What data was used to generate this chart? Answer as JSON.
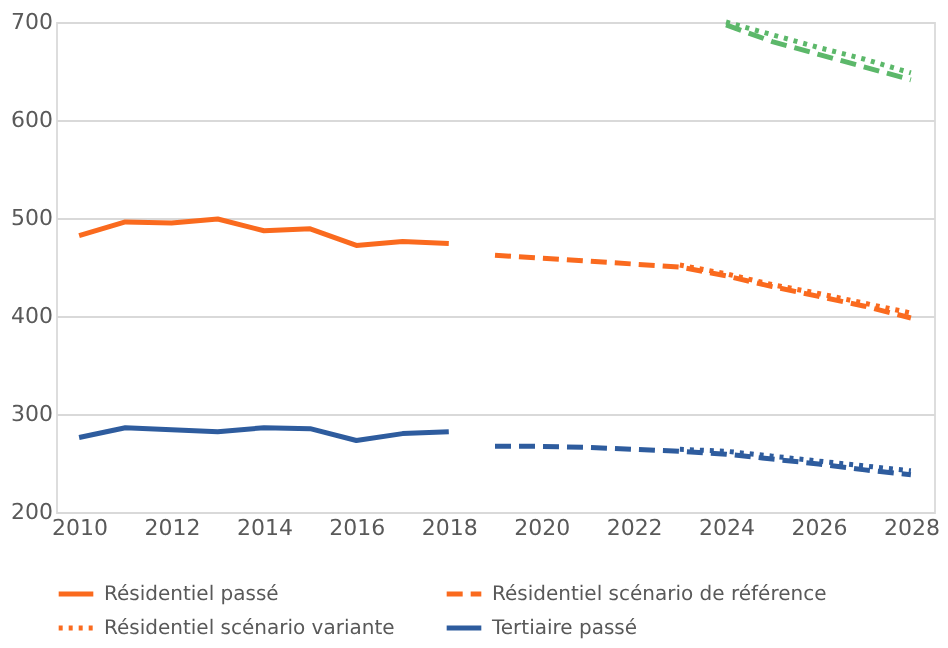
{
  "chart_data": {
    "type": "line",
    "x": [
      2010,
      2011,
      2012,
      2013,
      2014,
      2015,
      2016,
      2017,
      2018
    ],
    "xlim": [
      2009.5,
      2028.5
    ],
    "xticks": [
      2010,
      2012,
      2014,
      2016,
      2018,
      2020,
      2022,
      2024,
      2026,
      2028
    ],
    "ylim": [
      200,
      700
    ],
    "yticks": [
      200,
      300,
      400,
      500,
      600,
      700
    ],
    "grid": "y",
    "legend": "bottom",
    "marker": "none",
    "series": [
      {
        "name": "Résidentiel passé",
        "color": "#fa6a1e",
        "line_style": "solid",
        "values": [
          482,
          496,
          495,
          499,
          487,
          489,
          472,
          476,
          474
        ]
      },
      {
        "name": "Résidentiel scénario de référence",
        "color": "#fa6a1e",
        "line_style": "dashed",
        "x": [
          2019,
          2020,
          2021,
          2022,
          2023,
          2024,
          2025,
          2026,
          2027,
          2028
        ],
        "values": [
          462,
          459,
          456,
          453,
          450,
          441,
          430,
          420,
          410,
          398
        ]
      },
      {
        "name": "Résidentiel scénario variante",
        "color": "#fa6a1e",
        "line_style": "dotted",
        "x": [
          2023,
          2024,
          2025,
          2026,
          2027,
          2028
        ],
        "values": [
          452,
          443,
          432,
          423,
          413,
          403
        ]
      },
      {
        "name": "Tertiaire passé",
        "color": "#2e5c9e",
        "line_style": "solid",
        "values": [
          276,
          286,
          284,
          282,
          286,
          285,
          273,
          280,
          282
        ]
      },
      {
        "color": "#2e5c9e",
        "line_style": "dashed",
        "x": [
          2019,
          2020,
          2021,
          2022,
          2023,
          2024,
          2025,
          2026,
          2027,
          2028
        ],
        "values": [
          267,
          267,
          266,
          264,
          262,
          259,
          254,
          249,
          243,
          238
        ]
      },
      {
        "color": "#2e5c9e",
        "line_style": "dotted",
        "x": [
          2023,
          2024,
          2025,
          2026,
          2027,
          2028
        ],
        "values": [
          264,
          262,
          257,
          252,
          247,
          242
        ]
      },
      {
        "color": "#5cb86a",
        "line_style": "dashed",
        "x": [
          2024,
          2025,
          2026,
          2027,
          2028
        ],
        "values": [
          697,
          680,
          667,
          654,
          641
        ]
      },
      {
        "color": "#5cb86a",
        "line_style": "dotted",
        "x": [
          2024,
          2025,
          2026,
          2027,
          2028
        ],
        "values": [
          700,
          687,
          674,
          662,
          648
        ]
      }
    ]
  }
}
